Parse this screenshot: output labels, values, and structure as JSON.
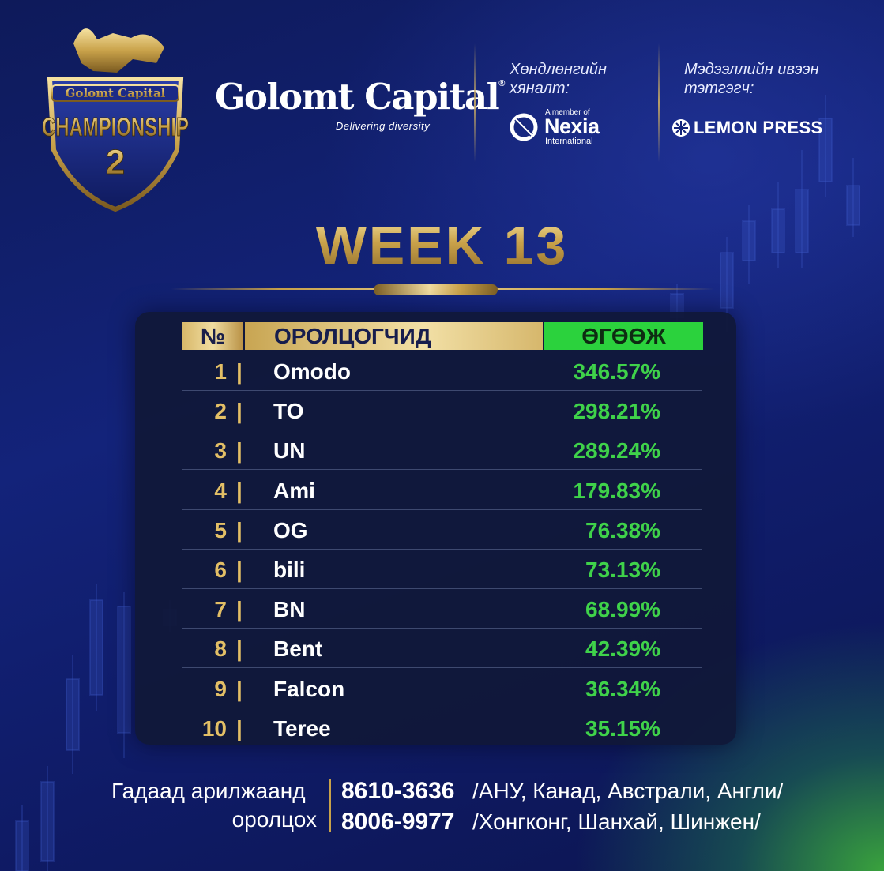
{
  "badge": {
    "brand": "Golomt Capital",
    "title": "CHAMPIONSHIP",
    "number": "2"
  },
  "header": {
    "brand_name": "Golomt Capital",
    "brand_tagline": "Delivering diversity",
    "auditor_label": "Хөндлөнгийн хяналт:",
    "auditor_member_text": "A member of",
    "auditor_name": "Nexia",
    "auditor_suffix": "International",
    "media_label": "Мэдээллийн ивээн тэтгэгч:",
    "media_name": "LEMON PRESS"
  },
  "week_title": "WEEK 13",
  "table": {
    "headers": {
      "rank": "№",
      "participant": "ОРОЛЦОГЧИД",
      "return": "ӨГӨӨЖ"
    },
    "rows": [
      {
        "rank": "1",
        "name": "Omodo",
        "return": "346.57%"
      },
      {
        "rank": "2",
        "name": "TO",
        "return": "298.21%"
      },
      {
        "rank": "3",
        "name": "UN",
        "return": "289.24%"
      },
      {
        "rank": "4",
        "name": "Ami",
        "return": "179.83%"
      },
      {
        "rank": "5",
        "name": "OG",
        "return": "76.38%"
      },
      {
        "rank": "6",
        "name": "bili",
        "return": "73.13%"
      },
      {
        "rank": "7",
        "name": "BN",
        "return": "68.99%"
      },
      {
        "rank": "8",
        "name": "Bent",
        "return": "42.39%"
      },
      {
        "rank": "9",
        "name": "Falcon",
        "return": "36.34%"
      },
      {
        "rank": "10",
        "name": "Teree",
        "return": "35.15%"
      }
    ],
    "separator": "|"
  },
  "footer": {
    "label_line1": "Гадаад арилжаанд",
    "label_line2": "оролцох",
    "phones": [
      {
        "number": "8610-3636",
        "regions": "/АНУ, Канад, Австрали, Англи/"
      },
      {
        "number": "8006-9977",
        "regions": "/Хонгконг, Шанхай, Шинжен/"
      }
    ]
  },
  "colors": {
    "background": "#13237a",
    "gold": "#c9a24a",
    "return_green": "#3fd24a",
    "header_green": "#2bd23d",
    "panel": "#101838"
  }
}
